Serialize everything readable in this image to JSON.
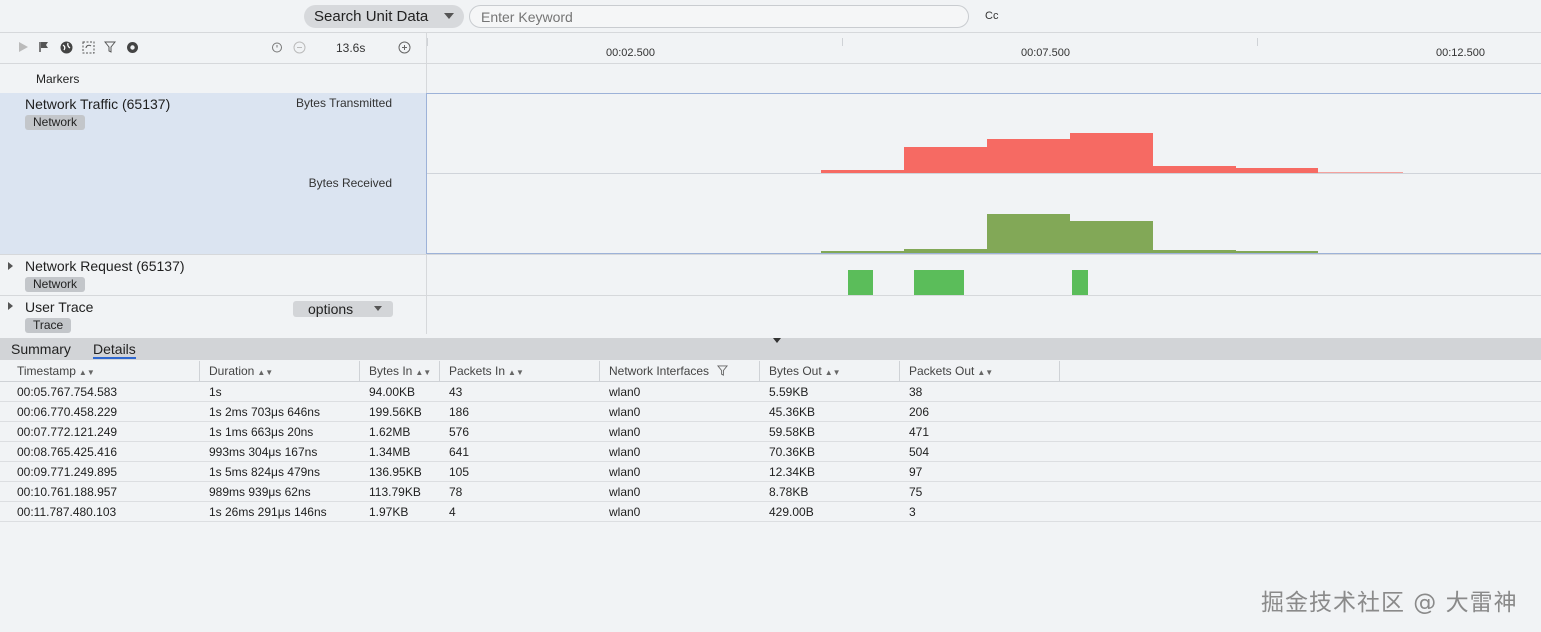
{
  "search": {
    "mode": "Search Unit Data",
    "placeholder": "Enter Keyword",
    "case_toggle": "Cc"
  },
  "toolbar": {
    "duration": "13.6s"
  },
  "timeline": {
    "ticks": [
      "00:02.500",
      "00:07.500",
      "00:12.500"
    ]
  },
  "lanes": {
    "markers": "Markers",
    "network_traffic": {
      "title": "Network Traffic (65137)",
      "tag": "Network",
      "metric_tx": "Bytes Transmitted",
      "metric_rx": "Bytes Received"
    },
    "network_request": {
      "title": "Network Request (65137)",
      "tag": "Network"
    },
    "user_trace": {
      "title": "User Trace",
      "tag": "Trace",
      "options": "options"
    }
  },
  "colors": {
    "transmitted": "#f66a63",
    "received": "#82a857",
    "request": "#5bbd5a",
    "selection": "#dbe4f1"
  },
  "tabs": [
    "Summary",
    "Details"
  ],
  "table": {
    "headers": [
      "Timestamp",
      "Duration",
      "Bytes In",
      "Packets In",
      "Network Interfaces",
      "Bytes Out",
      "Packets Out"
    ],
    "rows": [
      [
        "00:05.767.754.583",
        "1s",
        "94.00KB",
        "43",
        "wlan0",
        "5.59KB",
        "38"
      ],
      [
        "00:06.770.458.229",
        "1s 2ms 703μs 646ns",
        "199.56KB",
        "186",
        "wlan0",
        "45.36KB",
        "206"
      ],
      [
        "00:07.772.121.249",
        "1s 1ms 663μs 20ns",
        "1.62MB",
        "576",
        "wlan0",
        "59.58KB",
        "471"
      ],
      [
        "00:08.765.425.416",
        "993ms 304μs 167ns",
        "1.34MB",
        "641",
        "wlan0",
        "70.36KB",
        "504"
      ],
      [
        "00:09.771.249.895",
        "1s 5ms 824μs 479ns",
        "136.95KB",
        "105",
        "wlan0",
        "12.34KB",
        "97"
      ],
      [
        "00:10.761.188.957",
        "989ms 939μs 62ns",
        "113.79KB",
        "78",
        "wlan0",
        "8.78KB",
        "75"
      ],
      [
        "00:11.787.480.103",
        "1s 26ms 291μs 146ns",
        "1.97KB",
        "4",
        "wlan0",
        "429.00B",
        "3"
      ]
    ]
  },
  "watermark": "掘金技术社区 @ 大雷神"
}
